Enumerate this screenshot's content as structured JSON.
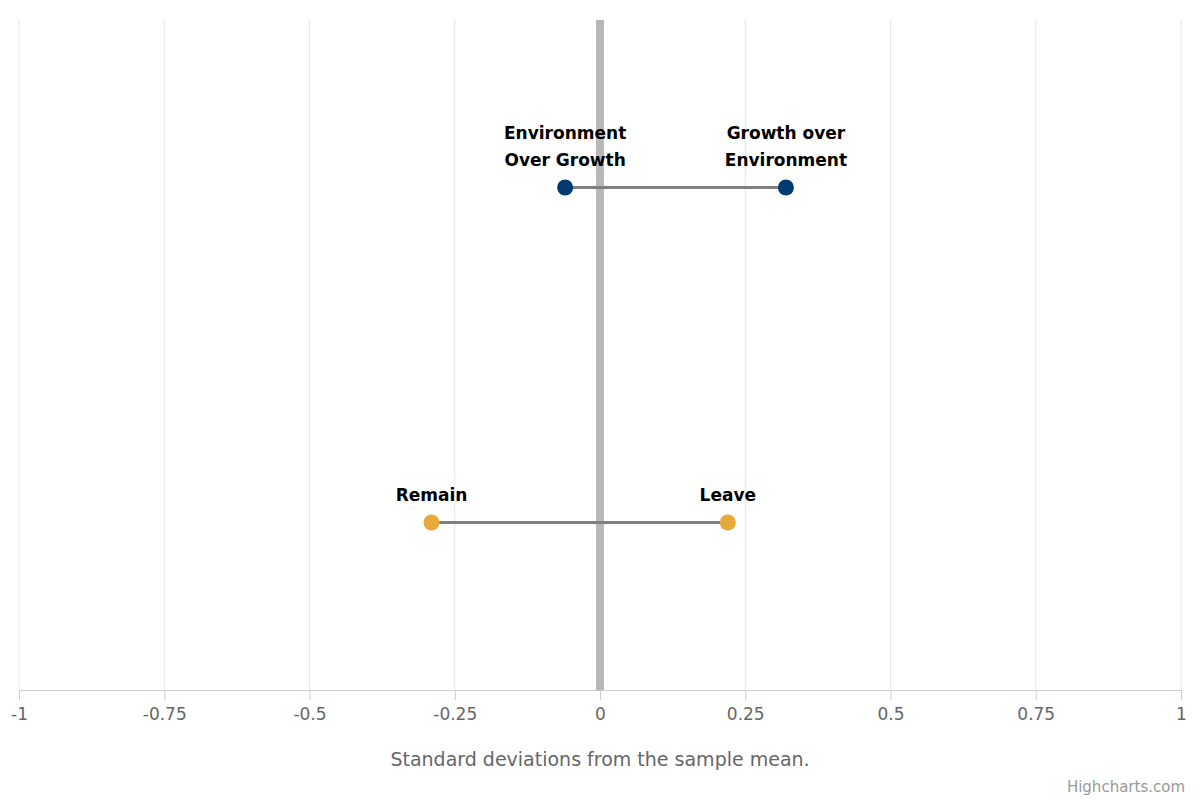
{
  "chart_data": {
    "type": "dumbbell",
    "xlabel": "Standard deviations from the sample mean.",
    "credits": "Highcharts.com",
    "xlim": [
      -1,
      1
    ],
    "xticks": [
      -1,
      -0.75,
      -0.5,
      -0.25,
      0,
      0.25,
      0.5,
      0.75,
      1
    ],
    "grid": true,
    "series": [
      {
        "color": "#003a6f",
        "values": [
          -0.06,
          0.32
        ],
        "labels": [
          "Environment Over Growth",
          "Growth over Environment"
        ]
      },
      {
        "color": "#e8a93c",
        "values": [
          -0.29,
          0.22
        ],
        "labels": [
          "Remain",
          "Leave"
        ]
      }
    ]
  }
}
